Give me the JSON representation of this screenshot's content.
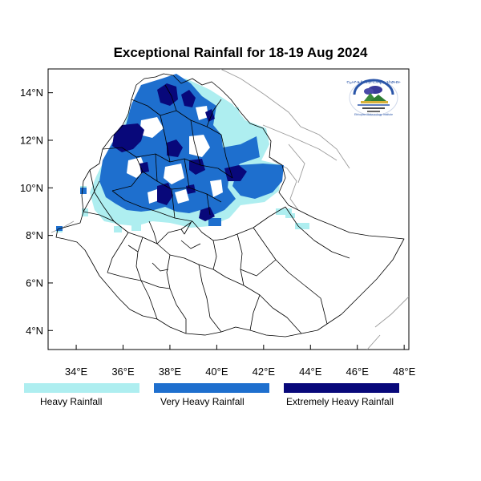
{
  "title": "Exceptional Rainfall for 18-19 Aug 2024",
  "axes": {
    "y_ticks": [
      {
        "value": 14,
        "label": "14°N"
      },
      {
        "value": 12,
        "label": "12°N"
      },
      {
        "value": 10,
        "label": "10°N"
      },
      {
        "value": 8,
        "label": "8°N"
      },
      {
        "value": 6,
        "label": "6°N"
      },
      {
        "value": 4,
        "label": "4°N"
      }
    ],
    "x_ticks": [
      {
        "value": 34,
        "label": "34°E"
      },
      {
        "value": 36,
        "label": "36°E"
      },
      {
        "value": 38,
        "label": "38°E"
      },
      {
        "value": 40,
        "label": "40°E"
      },
      {
        "value": 42,
        "label": "42°E"
      },
      {
        "value": 44,
        "label": "44°E"
      },
      {
        "value": 46,
        "label": "46°E"
      },
      {
        "value": 48,
        "label": "48°E"
      }
    ],
    "lon_range": [
      32.8,
      48.2
    ],
    "lat_range": [
      3.2,
      15.0
    ]
  },
  "legend": [
    {
      "label": "Heavy Rainfall",
      "color": "#aeeef0"
    },
    {
      "label": "Very Heavy Rainfall",
      "color": "#1e6fce"
    },
    {
      "label": "Extremely Heavy Rainfall",
      "color": "#08087a"
    }
  ],
  "logo": {
    "icon": "ethiopian-meteorology-institute-logo",
    "text_top": "የኢትዮጵያ ሚቲዮሮሎጂ ኢንስቲትዩት",
    "text_bottom": "Ethiopian Meteorology Institute"
  }
}
